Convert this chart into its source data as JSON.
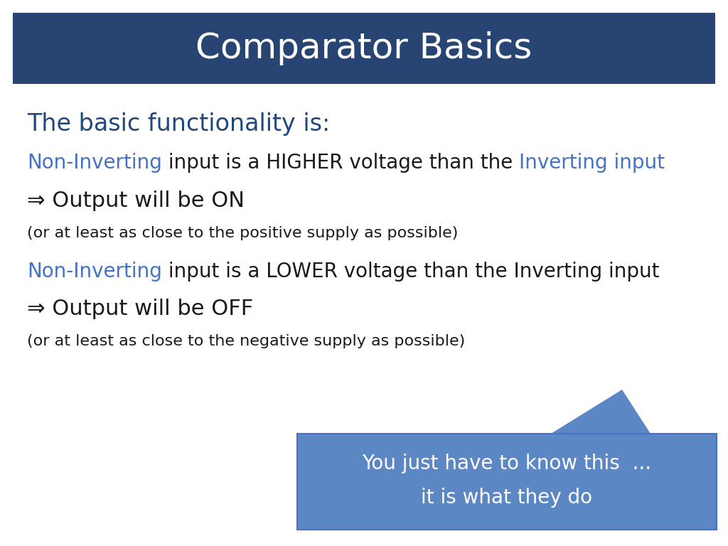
{
  "title": "Comparator Basics",
  "title_color": "#ffffff",
  "title_bg_color": "#274472",
  "subtitle": "The basic functionality is:",
  "subtitle_color": "#1F497D",
  "header_font_size": 36,
  "subtitle_font_size": 24,
  "body_font_size": 20,
  "small_font_size": 16,
  "arrow_font_size": 22,
  "blue_accent": "#4472C4",
  "dark_blue": "#1F497D",
  "callout_bg": "#5B87C5",
  "callout_text_color": "#ffffff",
  "callout_text1": "You just have to know this  ...",
  "callout_text2": "it is what they do",
  "background_color": "#ffffff",
  "line2": "⇒ Output will be ON",
  "line3": "(or at least as close to the positive supply as possible)",
  "line5": "⇒ Output will be OFF",
  "line6": "(or at least as close to the negative supply as possible)"
}
